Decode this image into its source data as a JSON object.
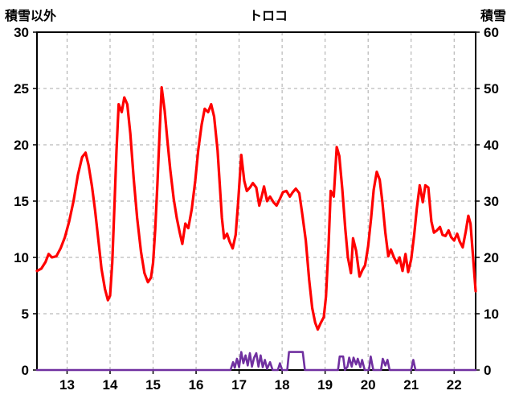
{
  "header": {
    "left_axis_label": "積雪以外",
    "title": "トロコ",
    "right_axis_label": "積雪"
  },
  "chart_data": {
    "type": "line",
    "title": "トロコ",
    "left_axis": {
      "label": "積雪以外",
      "min": 0,
      "max": 30,
      "tick_interval": 5
    },
    "right_axis": {
      "label": "積雪",
      "min": 0,
      "max": 60,
      "tick_interval": 10
    },
    "x_axis": {
      "min": 12.3,
      "max": 22.5,
      "ticks": [
        13,
        14,
        15,
        16,
        17,
        18,
        19,
        20,
        21,
        22
      ]
    },
    "grid": true,
    "colors": {
      "frame": "#000000",
      "grid": "#a8a8a8",
      "red_series": "#ff0000",
      "purple_series": "#7030a0"
    },
    "series": [
      {
        "name": "積雪以外",
        "axis": "left",
        "color": "#ff0000",
        "width": 3.2,
        "points": [
          [
            12.3,
            8.8
          ],
          [
            12.4,
            9.0
          ],
          [
            12.5,
            9.6
          ],
          [
            12.57,
            10.3
          ],
          [
            12.65,
            10.0
          ],
          [
            12.75,
            10.1
          ],
          [
            12.85,
            10.8
          ],
          [
            12.95,
            11.8
          ],
          [
            13.05,
            13.2
          ],
          [
            13.15,
            15.0
          ],
          [
            13.25,
            17.3
          ],
          [
            13.35,
            18.9
          ],
          [
            13.43,
            19.3
          ],
          [
            13.5,
            18.2
          ],
          [
            13.58,
            16.3
          ],
          [
            13.65,
            14.2
          ],
          [
            13.73,
            11.5
          ],
          [
            13.8,
            9.0
          ],
          [
            13.88,
            7.2
          ],
          [
            13.95,
            6.2
          ],
          [
            14.0,
            6.6
          ],
          [
            14.05,
            9.5
          ],
          [
            14.1,
            14.5
          ],
          [
            14.15,
            19.5
          ],
          [
            14.2,
            23.6
          ],
          [
            14.27,
            22.9
          ],
          [
            14.33,
            24.2
          ],
          [
            14.4,
            23.6
          ],
          [
            14.47,
            21.0
          ],
          [
            14.55,
            17.0
          ],
          [
            14.63,
            13.5
          ],
          [
            14.72,
            10.5
          ],
          [
            14.8,
            8.6
          ],
          [
            14.88,
            7.8
          ],
          [
            14.95,
            8.2
          ],
          [
            15.0,
            9.5
          ],
          [
            15.05,
            12.5
          ],
          [
            15.1,
            16.5
          ],
          [
            15.15,
            21.0
          ],
          [
            15.2,
            25.1
          ],
          [
            15.27,
            23.0
          ],
          [
            15.33,
            20.5
          ],
          [
            15.4,
            17.8
          ],
          [
            15.48,
            15.2
          ],
          [
            15.55,
            13.5
          ],
          [
            15.62,
            12.2
          ],
          [
            15.68,
            11.2
          ],
          [
            15.75,
            13.0
          ],
          [
            15.82,
            12.6
          ],
          [
            15.9,
            14.3
          ],
          [
            15.98,
            16.8
          ],
          [
            16.05,
            19.5
          ],
          [
            16.13,
            21.8
          ],
          [
            16.2,
            23.2
          ],
          [
            16.28,
            22.9
          ],
          [
            16.35,
            23.6
          ],
          [
            16.42,
            22.5
          ],
          [
            16.5,
            19.5
          ],
          [
            16.55,
            16.5
          ],
          [
            16.6,
            13.5
          ],
          [
            16.65,
            11.7
          ],
          [
            16.72,
            12.1
          ],
          [
            16.78,
            11.4
          ],
          [
            16.85,
            10.8
          ],
          [
            16.92,
            12.0
          ],
          [
            16.98,
            15.0
          ],
          [
            17.05,
            19.1
          ],
          [
            17.12,
            16.8
          ],
          [
            17.18,
            15.9
          ],
          [
            17.25,
            16.2
          ],
          [
            17.32,
            16.6
          ],
          [
            17.4,
            16.2
          ],
          [
            17.47,
            14.6
          ],
          [
            17.53,
            15.5
          ],
          [
            17.58,
            16.3
          ],
          [
            17.65,
            15.0
          ],
          [
            17.72,
            15.4
          ],
          [
            17.8,
            14.9
          ],
          [
            17.87,
            14.6
          ],
          [
            17.95,
            15.2
          ],
          [
            18.02,
            15.8
          ],
          [
            18.1,
            15.9
          ],
          [
            18.18,
            15.4
          ],
          [
            18.25,
            15.8
          ],
          [
            18.32,
            16.1
          ],
          [
            18.4,
            15.7
          ],
          [
            18.47,
            13.8
          ],
          [
            18.55,
            11.5
          ],
          [
            18.63,
            8.0
          ],
          [
            18.7,
            5.5
          ],
          [
            18.77,
            4.2
          ],
          [
            18.83,
            3.6
          ],
          [
            18.9,
            4.2
          ],
          [
            18.97,
            4.7
          ],
          [
            19.02,
            6.5
          ],
          [
            19.08,
            11.0
          ],
          [
            19.13,
            15.9
          ],
          [
            19.2,
            15.4
          ],
          [
            19.27,
            19.8
          ],
          [
            19.33,
            19.0
          ],
          [
            19.4,
            16.0
          ],
          [
            19.47,
            12.5
          ],
          [
            19.53,
            10.0
          ],
          [
            19.6,
            8.6
          ],
          [
            19.65,
            11.7
          ],
          [
            19.72,
            10.6
          ],
          [
            19.8,
            8.3
          ],
          [
            19.87,
            8.9
          ],
          [
            19.93,
            9.3
          ],
          [
            20.0,
            11.0
          ],
          [
            20.07,
            13.5
          ],
          [
            20.13,
            16.0
          ],
          [
            20.2,
            17.6
          ],
          [
            20.27,
            16.9
          ],
          [
            20.33,
            15.0
          ],
          [
            20.4,
            12.2
          ],
          [
            20.47,
            10.1
          ],
          [
            20.53,
            10.7
          ],
          [
            20.6,
            10.0
          ],
          [
            20.67,
            9.5
          ],
          [
            20.73,
            10.0
          ],
          [
            20.8,
            8.8
          ],
          [
            20.87,
            10.3
          ],
          [
            20.93,
            8.7
          ],
          [
            21.0,
            9.8
          ],
          [
            21.07,
            12.0
          ],
          [
            21.13,
            14.3
          ],
          [
            21.2,
            16.4
          ],
          [
            21.27,
            14.9
          ],
          [
            21.33,
            16.4
          ],
          [
            21.4,
            16.2
          ],
          [
            21.47,
            13.2
          ],
          [
            21.53,
            12.2
          ],
          [
            21.6,
            12.4
          ],
          [
            21.67,
            12.7
          ],
          [
            21.73,
            12.0
          ],
          [
            21.8,
            11.9
          ],
          [
            21.87,
            12.4
          ],
          [
            21.93,
            11.8
          ],
          [
            22.0,
            11.5
          ],
          [
            22.07,
            12.1
          ],
          [
            22.13,
            11.4
          ],
          [
            22.2,
            10.9
          ],
          [
            22.27,
            12.3
          ],
          [
            22.33,
            13.7
          ],
          [
            22.38,
            13.0
          ],
          [
            22.43,
            10.5
          ],
          [
            22.5,
            7.0
          ]
        ]
      },
      {
        "name": "積雪",
        "axis": "right",
        "color": "#7030a0",
        "width": 2.6,
        "points": [
          [
            12.3,
            0
          ],
          [
            16.8,
            0
          ],
          [
            16.86,
            1.4
          ],
          [
            16.9,
            0.4
          ],
          [
            16.95,
            2.0
          ],
          [
            17.0,
            0.5
          ],
          [
            17.05,
            3.2
          ],
          [
            17.1,
            1.2
          ],
          [
            17.15,
            2.6
          ],
          [
            17.2,
            0.8
          ],
          [
            17.25,
            3.0
          ],
          [
            17.3,
            0.6
          ],
          [
            17.35,
            2.2
          ],
          [
            17.4,
            3.0
          ],
          [
            17.45,
            0.6
          ],
          [
            17.5,
            2.6
          ],
          [
            17.55,
            0.5
          ],
          [
            17.6,
            1.8
          ],
          [
            17.65,
            0.2
          ],
          [
            17.72,
            1.4
          ],
          [
            17.78,
            0
          ],
          [
            17.9,
            0
          ],
          [
            17.95,
            1.2
          ],
          [
            18.0,
            0
          ],
          [
            18.12,
            0
          ],
          [
            18.16,
            3.2
          ],
          [
            18.48,
            3.2
          ],
          [
            18.53,
            0
          ],
          [
            19.3,
            0
          ],
          [
            19.34,
            2.4
          ],
          [
            19.42,
            2.4
          ],
          [
            19.46,
            0
          ],
          [
            19.52,
            0.6
          ],
          [
            19.56,
            2.2
          ],
          [
            19.62,
            0.6
          ],
          [
            19.66,
            2.2
          ],
          [
            19.72,
            1.0
          ],
          [
            19.76,
            2.0
          ],
          [
            19.82,
            0.5
          ],
          [
            19.86,
            1.8
          ],
          [
            19.92,
            0
          ],
          [
            20.02,
            0
          ],
          [
            20.06,
            2.4
          ],
          [
            20.12,
            0
          ],
          [
            20.3,
            0
          ],
          [
            20.34,
            2.0
          ],
          [
            20.4,
            0.8
          ],
          [
            20.45,
            1.8
          ],
          [
            20.5,
            0
          ],
          [
            21.0,
            0
          ],
          [
            21.05,
            1.8
          ],
          [
            21.1,
            0
          ],
          [
            22.5,
            0
          ]
        ]
      }
    ]
  }
}
